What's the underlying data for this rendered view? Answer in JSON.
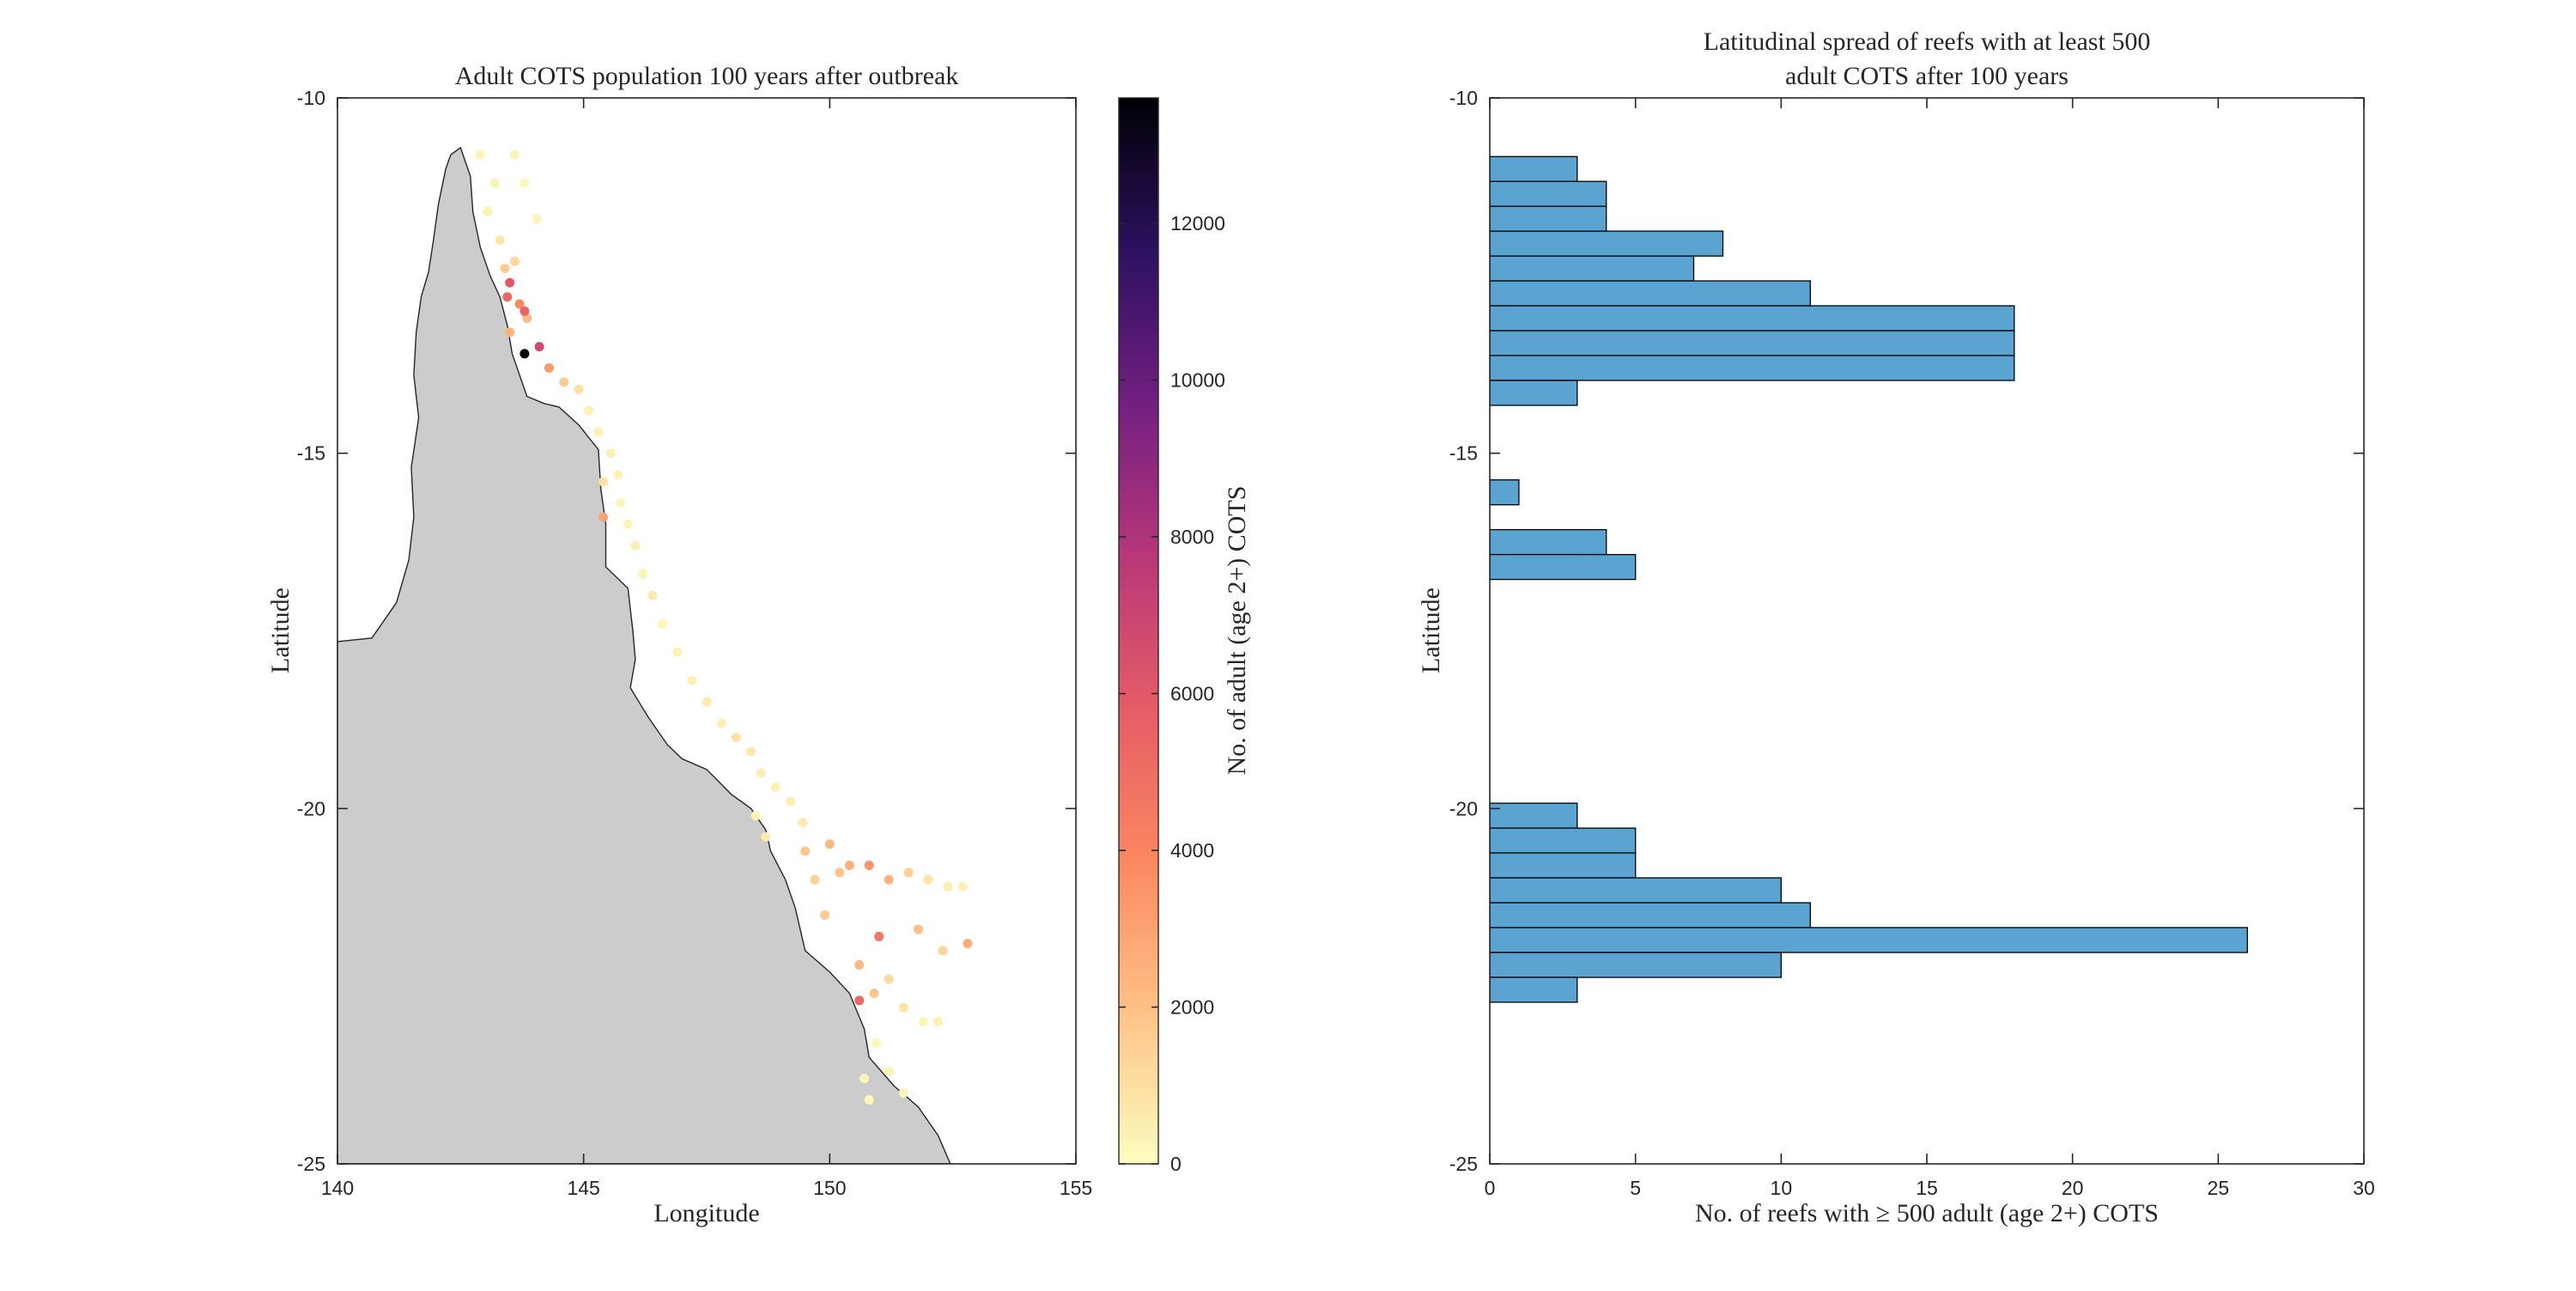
{
  "chart_data": [
    {
      "type": "scatter",
      "title": "Adult COTS population 100 years after outbreak",
      "xlabel": "Longitude",
      "ylabel": "Latitude",
      "xlim": [
        140,
        155
      ],
      "ylim": [
        -25,
        -10
      ],
      "xticks": [
        "140",
        "145",
        "150",
        "155"
      ],
      "yticks": [
        "-25",
        "-20",
        "-15",
        "-10"
      ],
      "grid": false,
      "land_color": "#cccccc",
      "colorbar": {
        "label": "No. of adult (age 2+) COTS",
        "range": [
          0,
          13600
        ],
        "ticks": [
          "0",
          "2000",
          "4000",
          "6000",
          "8000",
          "10000",
          "12000"
        ],
        "colormap": "magma (reversed)",
        "stops": [
          "#fcfdbf",
          "#fec287",
          "#fb8761",
          "#e55c66",
          "#b73779",
          "#721f81",
          "#2c115f",
          "#000004"
        ]
      },
      "coastline": [
        [
          140,
          -25
        ],
        [
          140,
          -17.65
        ],
        [
          140.7,
          -17.6
        ],
        [
          141.2,
          -17.1
        ],
        [
          141.45,
          -16.5
        ],
        [
          141.55,
          -15.9
        ],
        [
          141.5,
          -15.2
        ],
        [
          141.65,
          -14.5
        ],
        [
          141.55,
          -13.9
        ],
        [
          141.6,
          -13.3
        ],
        [
          141.7,
          -12.8
        ],
        [
          141.85,
          -12.45
        ],
        [
          141.95,
          -12.0
        ],
        [
          142.05,
          -11.5
        ],
        [
          142.2,
          -11.0
        ],
        [
          142.3,
          -10.8
        ],
        [
          142.5,
          -10.7
        ],
        [
          142.7,
          -11.1
        ],
        [
          142.75,
          -11.6
        ],
        [
          142.9,
          -12.1
        ],
        [
          143.1,
          -12.5
        ],
        [
          143.3,
          -12.8
        ],
        [
          143.45,
          -13.2
        ],
        [
          143.55,
          -13.6
        ],
        [
          143.7,
          -13.9
        ],
        [
          143.85,
          -14.2
        ],
        [
          144.2,
          -14.3
        ],
        [
          144.5,
          -14.35
        ],
        [
          144.9,
          -14.6
        ],
        [
          145.3,
          -14.95
        ],
        [
          145.35,
          -15.5
        ],
        [
          145.45,
          -16.0
        ],
        [
          145.45,
          -16.6
        ],
        [
          145.9,
          -16.9
        ],
        [
          146.0,
          -17.5
        ],
        [
          146.05,
          -17.9
        ],
        [
          145.95,
          -18.3
        ],
        [
          146.3,
          -18.7
        ],
        [
          146.7,
          -19.1
        ],
        [
          147.0,
          -19.3
        ],
        [
          147.5,
          -19.45
        ],
        [
          148.0,
          -19.8
        ],
        [
          148.4,
          -20.0
        ],
        [
          148.7,
          -20.3
        ],
        [
          148.8,
          -20.6
        ],
        [
          149.1,
          -21.0
        ],
        [
          149.3,
          -21.4
        ],
        [
          149.5,
          -22.0
        ],
        [
          150.0,
          -22.3
        ],
        [
          150.4,
          -22.6
        ],
        [
          150.7,
          -23.1
        ],
        [
          150.8,
          -23.5
        ],
        [
          151.3,
          -23.9
        ],
        [
          151.8,
          -24.2
        ],
        [
          152.2,
          -24.6
        ],
        [
          152.45,
          -25
        ]
      ],
      "series": [
        {
          "x": [
            142.9,
            143.2,
            143.05,
            143.6,
            143.8,
            143.3,
            144.05,
            143.4,
            143.6,
            143.45,
            143.7,
            143.85,
            143.5,
            143.8,
            144.1,
            144.3,
            144.6,
            144.9,
            145.1,
            145.3,
            145.55,
            145.7,
            145.4,
            145.75,
            145.9,
            146.05,
            146.2,
            146.4,
            146.6,
            146.9,
            147.2,
            147.5,
            147.8,
            148.1,
            148.4,
            148.6,
            148.9,
            149.2,
            149.45,
            149.5,
            150.0,
            150.4,
            150.2,
            150.8,
            151.2,
            151.6,
            152.0,
            152.4,
            152.7,
            152.8,
            152.3,
            151.8,
            151.0,
            149.7,
            149.9,
            150.6,
            150.9,
            151.2,
            151.5,
            151.9,
            152.2,
            150.95,
            150.7,
            150.8,
            151.2,
            151.5,
            150.6,
            148.5,
            148.7,
            143.5,
            143.8,
            145.4
          ],
          "y": [
            -10.8,
            -11.2,
            -11.6,
            -10.8,
            -11.2,
            -12.0,
            -11.7,
            -12.4,
            -12.3,
            -12.8,
            -12.9,
            -13.1,
            -13.3,
            -13.6,
            -13.5,
            -13.8,
            -14.0,
            -14.1,
            -14.4,
            -14.7,
            -15.0,
            -15.3,
            -15.4,
            -15.7,
            -16.0,
            -16.3,
            -16.7,
            -17.0,
            -17.4,
            -17.8,
            -18.2,
            -18.5,
            -18.8,
            -19.0,
            -19.2,
            -19.5,
            -19.7,
            -19.9,
            -20.2,
            -20.6,
            -20.5,
            -20.8,
            -20.9,
            -20.8,
            -21.0,
            -20.9,
            -21.0,
            -21.1,
            -21.1,
            -21.9,
            -22.0,
            -21.7,
            -21.8,
            -21.0,
            -21.5,
            -22.2,
            -22.6,
            -22.4,
            -22.8,
            -23.0,
            -23.0,
            -23.3,
            -23.8,
            -24.1,
            -23.7,
            -24.0,
            -22.7,
            -20.1,
            -20.4,
            -12.6,
            -13.0,
            -15.9
          ],
          "v": [
            300,
            250,
            350,
            280,
            150,
            700,
            250,
            1600,
            1200,
            5200,
            3800,
            2200,
            2500,
            13500,
            6800,
            3200,
            1600,
            900,
            400,
            300,
            500,
            300,
            900,
            250,
            300,
            450,
            300,
            700,
            250,
            300,
            400,
            600,
            450,
            900,
            700,
            500,
            350,
            500,
            600,
            1800,
            2200,
            2500,
            1900,
            3500,
            2400,
            1500,
            800,
            500,
            400,
            2600,
            1300,
            2000,
            4500,
            1400,
            1600,
            2200,
            1800,
            1200,
            900,
            300,
            400,
            200,
            300,
            250,
            300,
            200,
            5200,
            300,
            600,
            6000,
            5500,
            3000
          ]
        }
      ]
    },
    {
      "type": "bar",
      "orientation": "horizontal",
      "title": "Latitudinal spread of reefs with at least 500",
      "subtitle": "adult COTS after 100 years",
      "xlabel": "No. of reefs with ≥ 500 adult (age 2+) COTS",
      "ylabel": "Latitude",
      "xlim": [
        0,
        30
      ],
      "ylim": [
        -25,
        -10
      ],
      "xticks": [
        "0",
        "5",
        "10",
        "15",
        "20",
        "25",
        "30"
      ],
      "yticks": [
        "-25",
        "-20",
        "-15",
        "-10"
      ],
      "bar_color": "#5ba3d0",
      "bin_width": 0.35,
      "categories": [
        -11.0,
        -11.35,
        -11.7,
        -12.05,
        -12.4,
        -12.75,
        -13.1,
        -13.45,
        -13.8,
        -14.15,
        -14.5,
        -14.85,
        -15.2,
        -15.55,
        -15.9,
        -16.25,
        -16.6,
        -16.95,
        -17.3,
        -17.65,
        -18.0,
        -18.35,
        -18.7,
        -19.05,
        -19.4,
        -19.75,
        -20.1,
        -20.45,
        -20.8,
        -21.15,
        -21.5,
        -21.85,
        -22.2,
        -22.55,
        -22.9,
        -23.25,
        -23.6,
        -23.95,
        -24.3,
        -24.65,
        -25.0
      ],
      "values": [
        3,
        4,
        4,
        8,
        7,
        11,
        18,
        18,
        18,
        3,
        0,
        0,
        0,
        1,
        0,
        4,
        5,
        0,
        0,
        0,
        0,
        0,
        0,
        0,
        0,
        0,
        3,
        5,
        5,
        10,
        11,
        26,
        10,
        3,
        0,
        0,
        0,
        0,
        0,
        0,
        0
      ]
    }
  ]
}
